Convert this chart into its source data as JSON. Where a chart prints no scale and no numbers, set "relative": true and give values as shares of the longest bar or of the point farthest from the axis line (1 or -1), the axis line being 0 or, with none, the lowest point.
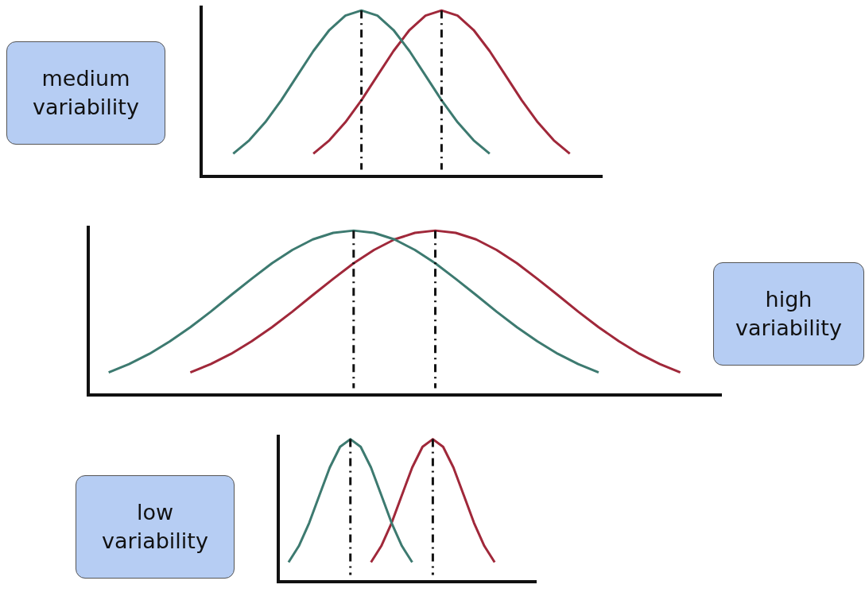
{
  "chart_data": [
    {
      "type": "line",
      "relative": true,
      "legend": false,
      "marker": "none",
      "annotations": [
        "medium variability"
      ],
      "categories": [
        null,
        null,
        null,
        null,
        null,
        null,
        null,
        null,
        null,
        null,
        null,
        null,
        null,
        null,
        null,
        null,
        null,
        null,
        null,
        null,
        null,
        null,
        null,
        null,
        null,
        null
      ],
      "series": [
        {
          "color": "#3d7a70",
          "values": [
            null,
            null,
            0.135,
            0.216,
            0.325,
            0.458,
            0.607,
            0.755,
            0.882,
            0.969,
            1,
            0.969,
            0.882,
            0.755,
            0.607,
            0.458,
            0.325,
            0.216,
            0.135,
            null,
            null,
            null,
            null,
            null,
            null,
            null
          ]
        },
        {
          "color": "#a0283a",
          "values": [
            null,
            null,
            null,
            null,
            null,
            null,
            null,
            0.135,
            0.216,
            0.325,
            0.458,
            0.607,
            0.755,
            0.882,
            0.969,
            1,
            0.969,
            0.882,
            0.755,
            0.607,
            0.458,
            0.325,
            0.216,
            0.135,
            null,
            null
          ]
        }
      ]
    },
    {
      "type": "line",
      "relative": true,
      "legend": false,
      "marker": "none",
      "annotations": [
        "high variability"
      ],
      "categories": [
        null,
        null,
        null,
        null,
        null,
        null,
        null,
        null,
        null,
        null,
        null,
        null,
        null,
        null,
        null,
        null,
        null,
        null,
        null,
        null,
        null,
        null,
        null,
        null,
        null,
        null,
        null,
        null,
        null,
        null,
        null,
        null
      ],
      "series": [
        {
          "color": "#3d7a70",
          "values": [
            null,
            0.135,
            0.186,
            0.249,
            0.325,
            0.411,
            0.506,
            0.607,
            0.706,
            0.801,
            0.882,
            0.946,
            0.986,
            1,
            0.986,
            0.946,
            0.882,
            0.801,
            0.706,
            0.607,
            0.506,
            0.411,
            0.325,
            0.249,
            0.186,
            0.135,
            null,
            null,
            null,
            null,
            null,
            null
          ]
        },
        {
          "color": "#a0283a",
          "values": [
            null,
            null,
            null,
            null,
            null,
            0.135,
            0.186,
            0.249,
            0.325,
            0.411,
            0.506,
            0.607,
            0.706,
            0.801,
            0.882,
            0.946,
            0.986,
            1,
            0.986,
            0.946,
            0.882,
            0.801,
            0.706,
            0.607,
            0.506,
            0.411,
            0.325,
            0.249,
            0.186,
            0.135,
            null,
            null
          ]
        }
      ]
    },
    {
      "type": "line",
      "relative": true,
      "legend": false,
      "marker": "none",
      "annotations": [
        "low variability"
      ],
      "categories": [
        null,
        null,
        null,
        null,
        null,
        null,
        null,
        null,
        null,
        null,
        null,
        null,
        null,
        null,
        null,
        null,
        null,
        null,
        null,
        null,
        null,
        null,
        null,
        null,
        null,
        null
      ],
      "series": [
        {
          "color": "#3d7a70",
          "values": [
            null,
            0.135,
            0.249,
            0.411,
            0.607,
            0.801,
            0.946,
            1,
            0.946,
            0.801,
            0.607,
            0.411,
            0.249,
            0.135,
            null,
            null,
            null,
            null,
            null,
            null,
            null,
            null,
            null,
            null,
            null,
            null
          ]
        },
        {
          "color": "#a0283a",
          "values": [
            null,
            null,
            null,
            null,
            null,
            null,
            null,
            null,
            null,
            0.135,
            0.249,
            0.411,
            0.607,
            0.801,
            0.946,
            1,
            0.946,
            0.801,
            0.607,
            0.411,
            0.249,
            0.135,
            null,
            null,
            null,
            null
          ]
        }
      ]
    }
  ]
}
